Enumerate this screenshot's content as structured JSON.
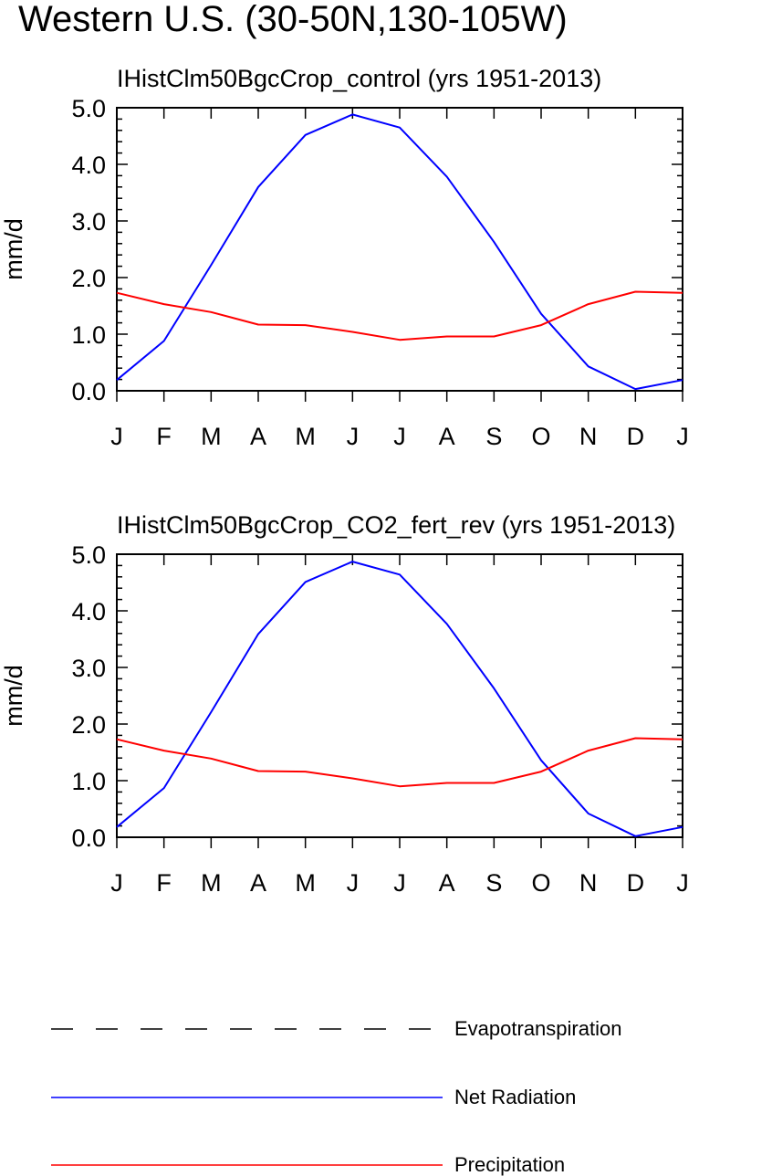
{
  "title": "Western U.S. (30-50N,130-105W)",
  "colors": {
    "Evapotranspiration": "#000000",
    "Net Radiation": "#0000ff",
    "Precipitation": "#ff0000"
  },
  "chart_data": [
    {
      "type": "line",
      "title": "IHistClm50BgcCrop_control (yrs 1951-2013)",
      "xlabel": "",
      "ylabel": "mm/d",
      "categories": [
        "J",
        "F",
        "M",
        "A",
        "M",
        "J",
        "J",
        "A",
        "S",
        "O",
        "N",
        "D",
        "J"
      ],
      "ylim": [
        0,
        5
      ],
      "yticks": [
        "0.0",
        "1.0",
        "2.0",
        "3.0",
        "4.0",
        "5.0"
      ],
      "series": [
        {
          "name": "Net Radiation",
          "values": [
            0.19,
            0.88,
            2.22,
            3.6,
            4.52,
            4.88,
            4.65,
            3.78,
            2.63,
            1.36,
            0.43,
            0.03,
            0.19
          ]
        },
        {
          "name": "Precipitation",
          "values": [
            1.73,
            1.53,
            1.39,
            1.17,
            1.16,
            1.04,
            0.9,
            0.96,
            0.96,
            1.16,
            1.53,
            1.75,
            1.73
          ]
        }
      ]
    },
    {
      "type": "line",
      "title": "IHistClm50BgcCrop_CO2_fert_rev (yrs 1951-2013)",
      "xlabel": "",
      "ylabel": "mm/d",
      "categories": [
        "J",
        "F",
        "M",
        "A",
        "M",
        "J",
        "J",
        "A",
        "S",
        "O",
        "N",
        "D",
        "J"
      ],
      "ylim": [
        0,
        5
      ],
      "yticks": [
        "0.0",
        "1.0",
        "2.0",
        "3.0",
        "4.0",
        "5.0"
      ],
      "series": [
        {
          "name": "Net Radiation",
          "values": [
            0.18,
            0.87,
            2.21,
            3.59,
            4.51,
            4.87,
            4.64,
            3.77,
            2.63,
            1.36,
            0.42,
            0.02,
            0.18
          ]
        },
        {
          "name": "Precipitation",
          "values": [
            1.73,
            1.53,
            1.39,
            1.17,
            1.16,
            1.04,
            0.9,
            0.96,
            0.96,
            1.16,
            1.53,
            1.75,
            1.73
          ]
        }
      ]
    }
  ],
  "legend": {
    "items": [
      {
        "label": "Evapotranspiration",
        "style": "dashed",
        "color": "#000000"
      },
      {
        "label": "Net Radiation",
        "style": "solid",
        "color": "#0000ff"
      },
      {
        "label": "Precipitation",
        "style": "solid",
        "color": "#ff0000"
      }
    ]
  }
}
